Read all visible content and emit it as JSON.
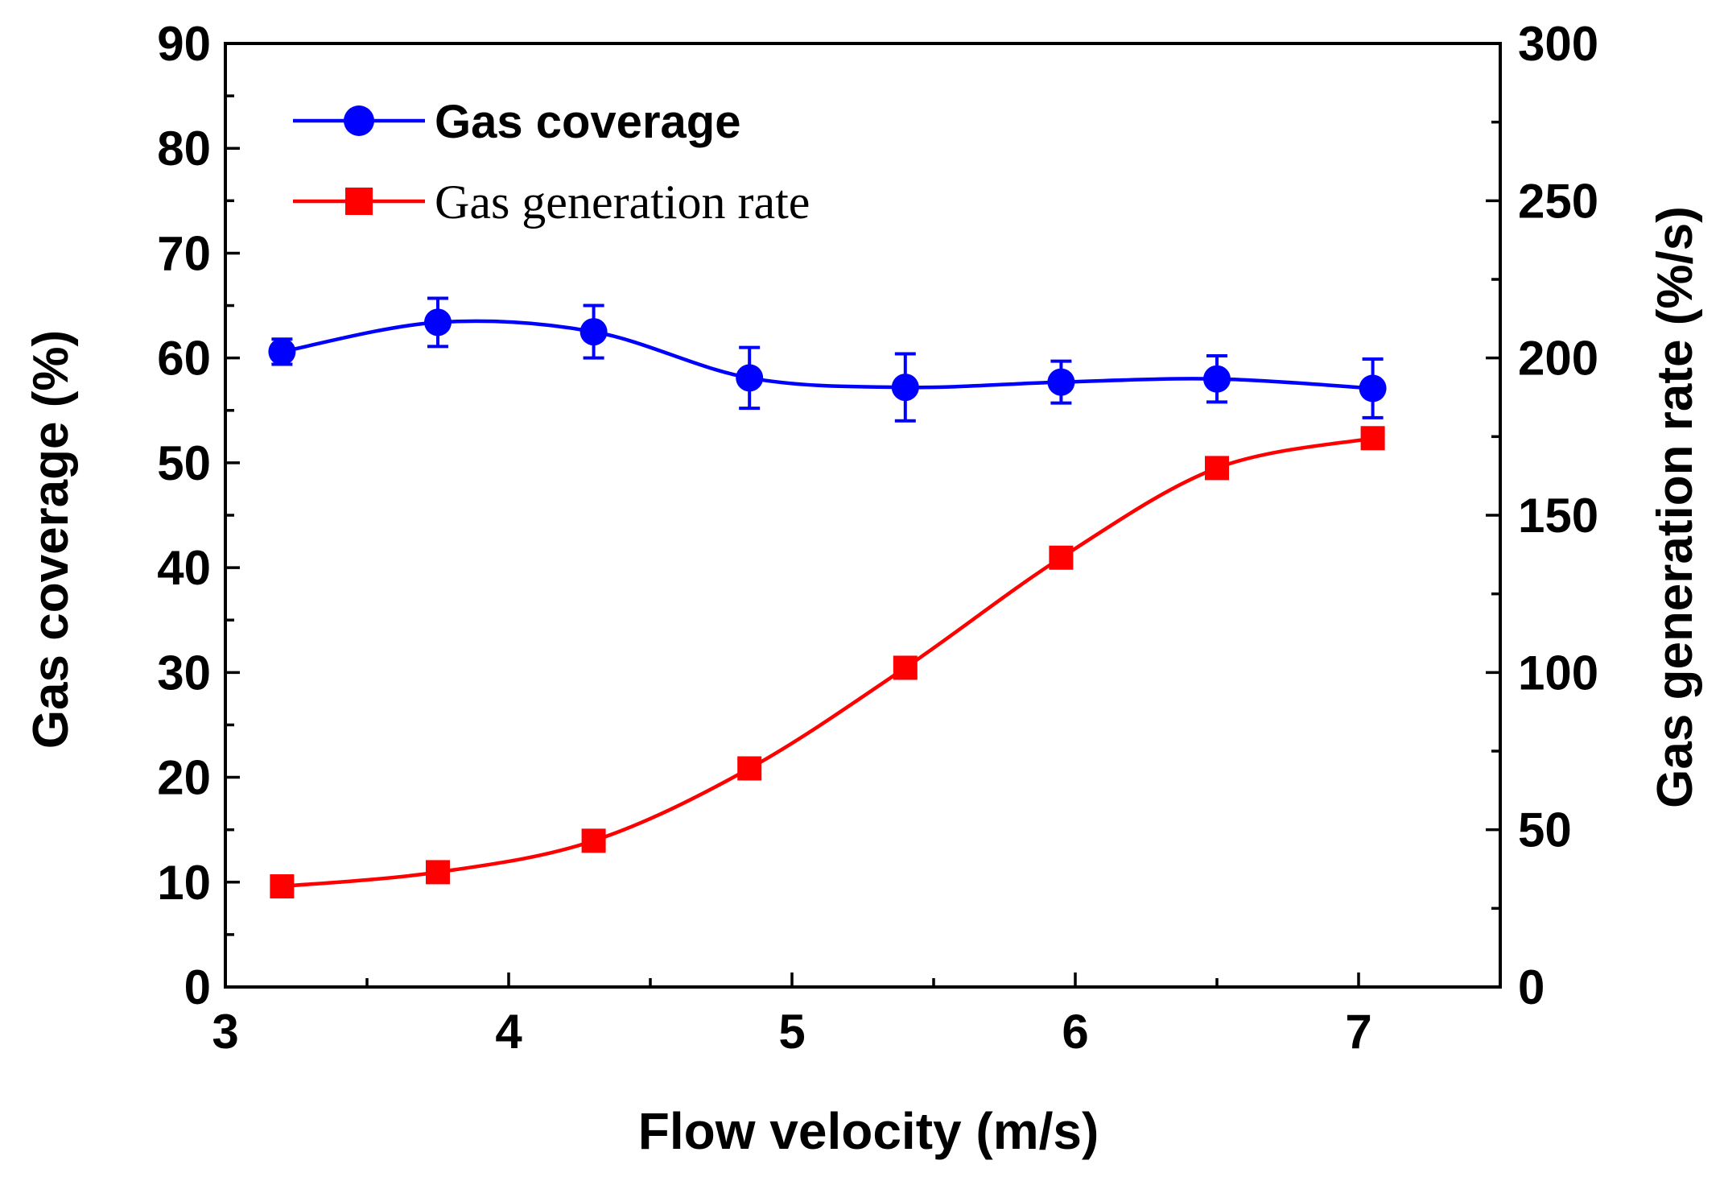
{
  "chart_data": {
    "type": "line",
    "xlabel": "Flow velocity (m/s)",
    "ylabel_left": "Gas coverage (%)",
    "ylabel_right": "Gas generation rate (%/s)",
    "xlim": [
      3,
      7.5
    ],
    "ylim_left": [
      0,
      90
    ],
    "ylim_right": [
      0,
      300
    ],
    "x_ticks": [
      3,
      4,
      5,
      6,
      7
    ],
    "y_left_ticks": [
      0,
      10,
      20,
      30,
      40,
      50,
      60,
      70,
      80,
      90
    ],
    "y_right_ticks": [
      0,
      50,
      100,
      150,
      200,
      250,
      300
    ],
    "x_tick_labels": [
      "3",
      "4",
      "5",
      "6",
      "7"
    ],
    "y_left_tick_labels": [
      "0",
      "10",
      "20",
      "30",
      "40",
      "50",
      "60",
      "70",
      "80",
      "90"
    ],
    "y_right_tick_labels": [
      "0",
      "50",
      "100",
      "150",
      "200",
      "250",
      "300"
    ],
    "grid": false,
    "legend_position": "top-left",
    "series": [
      {
        "name": "Gas coverage",
        "axis": "left",
        "marker": "circle",
        "color": "#0000ff",
        "x": [
          3.2,
          3.75,
          4.3,
          4.85,
          5.4,
          5.95,
          6.5,
          7.05
        ],
        "y": [
          60.6,
          63.4,
          62.5,
          58.1,
          57.2,
          57.7,
          58.0,
          57.1
        ],
        "error": [
          1.2,
          2.3,
          2.5,
          2.9,
          3.2,
          2.0,
          2.2,
          2.8
        ]
      },
      {
        "name": "Gas generation rate",
        "axis": "right",
        "marker": "square",
        "color": "#ff0000",
        "x": [
          3.2,
          3.75,
          4.3,
          4.85,
          5.4,
          5.95,
          6.5,
          7.05
        ],
        "y": [
          32,
          36.5,
          46.5,
          69.5,
          101.5,
          136.5,
          165,
          174.5
        ]
      }
    ]
  }
}
